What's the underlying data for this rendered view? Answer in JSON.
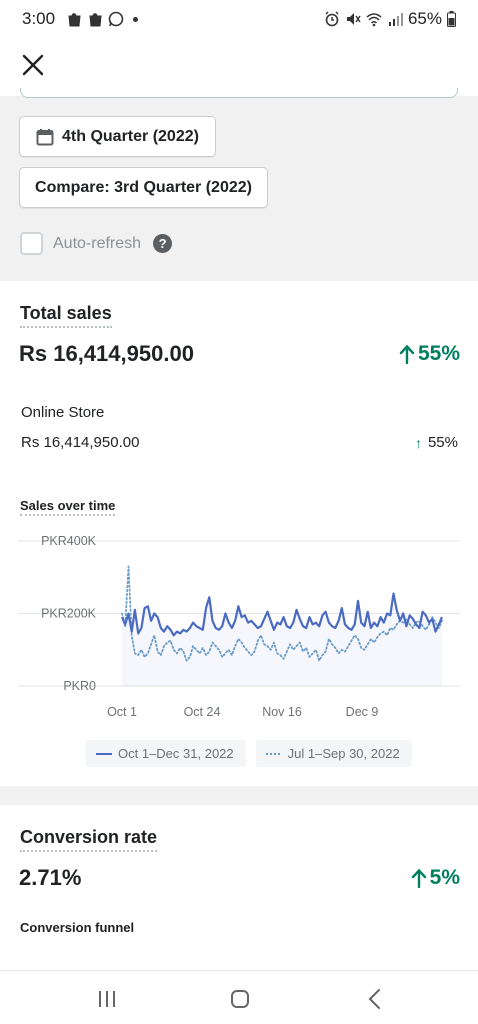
{
  "status": {
    "time": "3:00",
    "battery": "65%"
  },
  "filters": {
    "date_label": "4th Quarter (2022)",
    "compare_label": "Compare: 3rd Quarter (2022)",
    "auto_refresh_label": "Auto-refresh",
    "auto_refresh_checked": false,
    "help_glyph": "?"
  },
  "total_sales": {
    "title": "Total sales",
    "value": "Rs 16,414,950.00",
    "change": "55%",
    "breakdown": {
      "label": "Online Store",
      "value": "Rs 16,414,950.00",
      "change": "55%"
    },
    "chart_title": "Sales over time"
  },
  "chart_data": {
    "type": "line",
    "title": "Sales over time",
    "yticks": [
      "PKR400K",
      "PKR200K",
      "PKR0"
    ],
    "xticks": [
      "Oct 1",
      "Oct 24",
      "Nov 16",
      "Dec 9"
    ],
    "ylim": [
      0,
      400000
    ],
    "grid": true,
    "legend_position": "bottom",
    "series": [
      {
        "name": "Oct 1–Dec 31, 2022",
        "color": "#4b6bc2",
        "style": "solid",
        "values": [
          190000,
          170000,
          200000,
          150000,
          210000,
          145000,
          160000,
          215000,
          220000,
          180000,
          200000,
          190000,
          160000,
          150000,
          165000,
          155000,
          140000,
          150000,
          145000,
          155000,
          150000,
          160000,
          175000,
          165000,
          160000,
          155000,
          215000,
          245000,
          180000,
          160000,
          155000,
          165000,
          200000,
          175000,
          160000,
          180000,
          220000,
          190000,
          195000,
          175000,
          180000,
          170000,
          160000,
          165000,
          185000,
          205000,
          180000,
          155000,
          175000,
          170000,
          190000,
          165000,
          160000,
          175000,
          210000,
          185000,
          165000,
          160000,
          190000,
          170000,
          175000,
          165000,
          195000,
          205000,
          175000,
          165000,
          160000,
          180000,
          215000,
          170000,
          160000,
          155000,
          170000,
          235000,
          175000,
          165000,
          205000,
          160000,
          175000,
          165000,
          190000,
          175000,
          200000,
          195000,
          255000,
          210000,
          180000,
          200000,
          165000,
          195000,
          185000,
          170000,
          160000,
          205000,
          195000,
          175000,
          185000,
          150000,
          170000,
          190000
        ]
      },
      {
        "name": "Jul 1–Sep 30, 2022",
        "color": "#6d9fc9",
        "style": "dotted",
        "values": [
          200000,
          165000,
          330000,
          140000,
          90000,
          85000,
          100000,
          80000,
          90000,
          115000,
          140000,
          95000,
          85000,
          110000,
          120000,
          125000,
          100000,
          90000,
          105000,
          95000,
          70000,
          80000,
          110000,
          100000,
          90000,
          105000,
          85000,
          95000,
          120000,
          110000,
          100000,
          80000,
          90000,
          100000,
          85000,
          110000,
          130000,
          120000,
          105000,
          95000,
          85000,
          95000,
          125000,
          140000,
          115000,
          110000,
          100000,
          120000,
          90000,
          85000,
          75000,
          95000,
          115000,
          100000,
          110000,
          120000,
          95000,
          105000,
          80000,
          90000,
          100000,
          70000,
          85000,
          95000,
          130000,
          115000,
          105000,
          90000,
          100000,
          95000,
          110000,
          125000,
          140000,
          130000,
          105000,
          100000,
          115000,
          130000,
          120000,
          135000,
          145000,
          150000,
          140000,
          160000,
          155000,
          170000,
          180000,
          175000,
          185000,
          170000,
          160000,
          175000,
          180000,
          165000,
          155000,
          170000,
          190000,
          175000,
          160000,
          180000
        ]
      }
    ]
  },
  "conversion": {
    "title": "Conversion rate",
    "value": "2.71%",
    "change": "5%",
    "funnel_title": "Conversion funnel"
  }
}
